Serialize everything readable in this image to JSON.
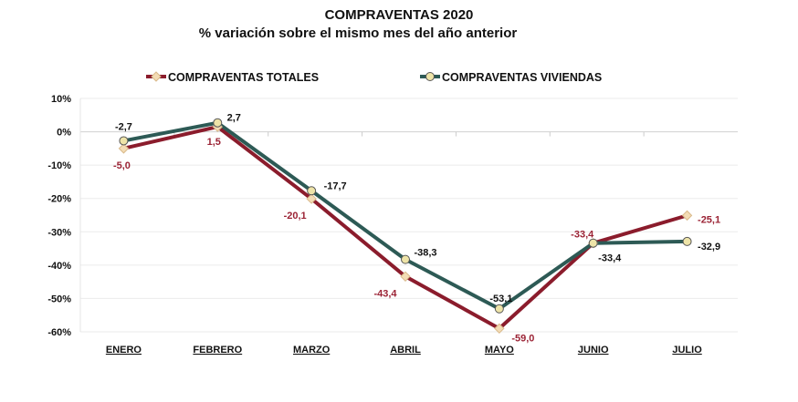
{
  "chart_data": {
    "type": "line",
    "title": "COMPRAVENTAS  2020",
    "subtitle": "% variación sobre el mismo mes del año anterior",
    "categories": [
      "ENERO",
      "FEBRERO",
      "MARZO",
      "ABRIL",
      "MAYO",
      "JUNIO",
      "JULIO"
    ],
    "ylim": [
      -60,
      10
    ],
    "yticks": [
      10,
      0,
      -10,
      -20,
      -30,
      -40,
      -50,
      -60
    ],
    "ytick_labels": [
      "10%",
      "0%",
      "-10%",
      "-20%",
      "-30%",
      "-40%",
      "-50%",
      "-60%"
    ],
    "grid": "horizontal",
    "legend_position": "top",
    "series": [
      {
        "name": "COMPRAVENTAS TOTALES",
        "values": [
          -5.0,
          1.5,
          -20.1,
          -43.4,
          -59.0,
          -33.4,
          -25.1
        ],
        "labels": [
          "-5,0",
          "1,5",
          "-20,1",
          "-43,4",
          "-59,0",
          "-33,4",
          "-25,1"
        ],
        "color": "#8b1c2c",
        "label_color": "#9b2335",
        "marker": "diamond",
        "marker_fill": "#f3dcb5"
      },
      {
        "name": "COMPRAVENTAS VIVIENDAS",
        "values": [
          -2.7,
          2.7,
          -17.7,
          -38.3,
          -53.1,
          -33.4,
          -32.9
        ],
        "labels": [
          "-2,7",
          "2,7",
          "-17,7",
          "-38,3",
          "-53,1",
          "-33,4",
          "-32,9"
        ],
        "color": "#2d5a55",
        "label_color": "#111111",
        "marker": "circle",
        "marker_fill": "#eee4a8"
      }
    ]
  }
}
